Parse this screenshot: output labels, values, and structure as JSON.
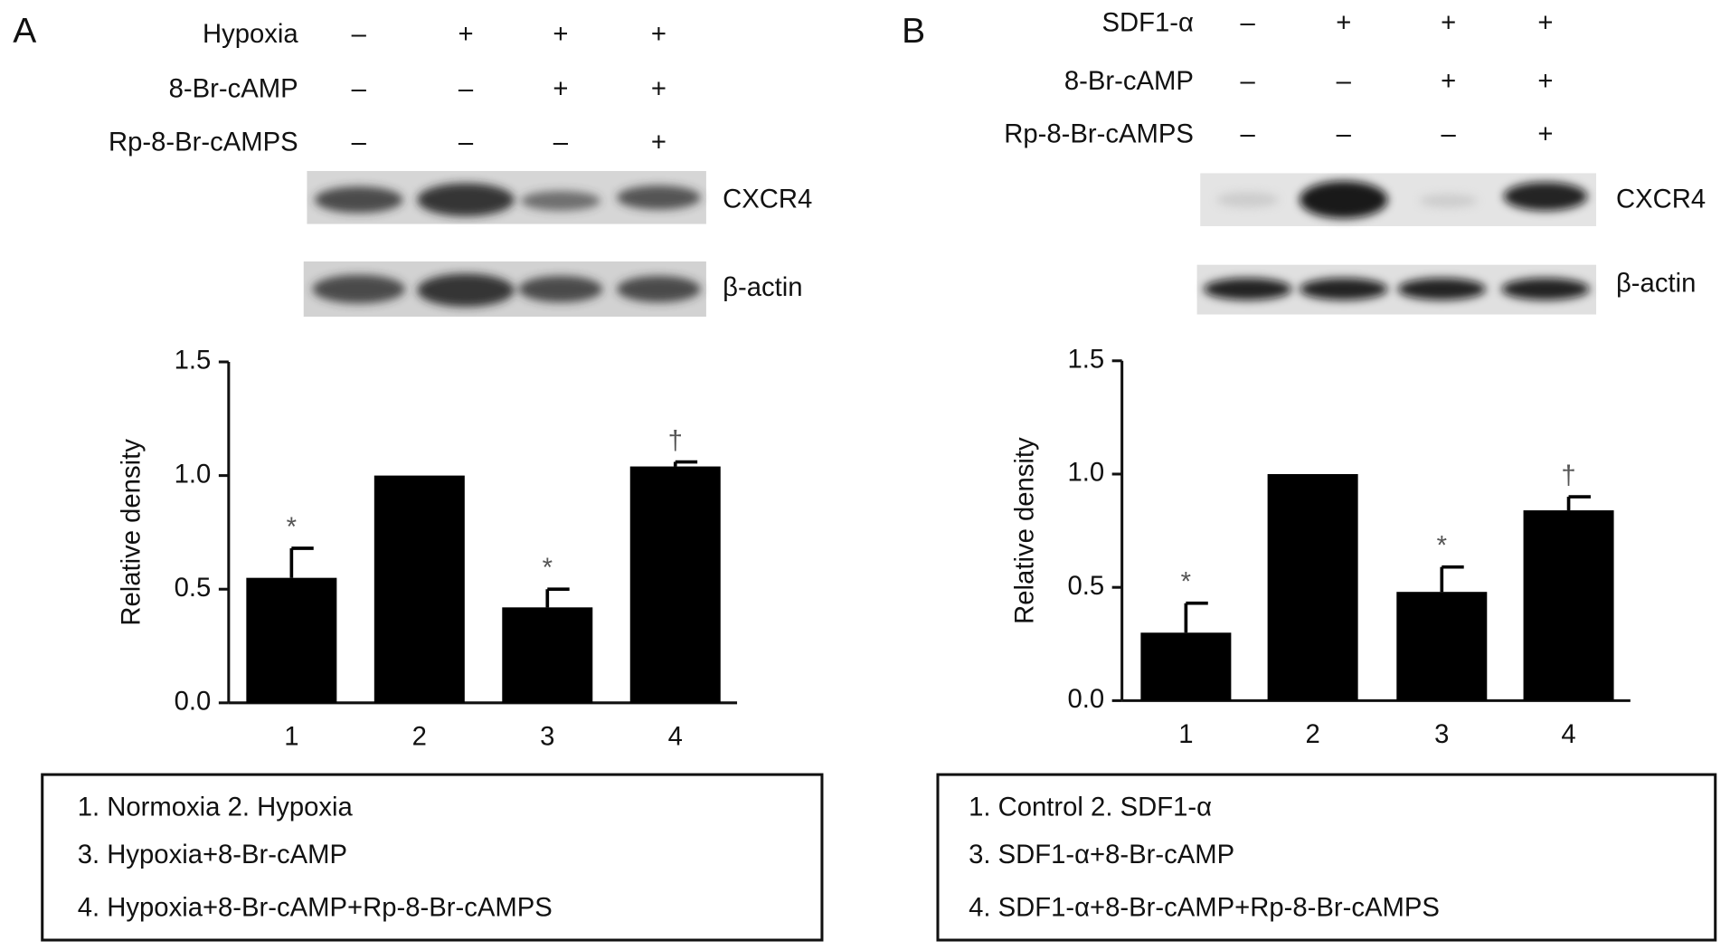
{
  "panels": [
    {
      "letter": "A",
      "treatments": [
        {
          "name": "Hypoxia",
          "signs": [
            "–",
            "+",
            "+",
            "+"
          ]
        },
        {
          "name": "8-Br-cAMP",
          "signs": [
            "–",
            "–",
            "+",
            "+"
          ]
        },
        {
          "name": "Rp-8-Br-cAMPS",
          "signs": [
            "–",
            "–",
            "–",
            "+"
          ]
        }
      ],
      "blot_labels": [
        "CXCR4",
        "β-actin"
      ],
      "legend_lines": [
        "1. Normoxia 2. Hypoxia",
        "3. Hypoxia+8-Br-cAMP",
        "4. Hypoxia+8-Br-cAMP+Rp-8-Br-cAMPS"
      ]
    },
    {
      "letter": "B",
      "treatments": [
        {
          "name": "SDF1-α",
          "signs": [
            "–",
            "+",
            "+",
            "+"
          ]
        },
        {
          "name": "8-Br-cAMP",
          "signs": [
            "–",
            "–",
            "+",
            "+"
          ]
        },
        {
          "name": "Rp-8-Br-cAMPS",
          "signs": [
            "–",
            "–",
            "–",
            "+"
          ]
        }
      ],
      "blot_labels": [
        "CXCR4",
        "β-actin"
      ],
      "legend_lines": [
        "1. Control 2. SDF1-α",
        "3. SDF1-α+8-Br-cAMP",
        "4. SDF1-α+8-Br-cAMP+Rp-8-Br-cAMPS"
      ]
    }
  ],
  "chart_data": [
    {
      "type": "bar",
      "y_label": "Relative density",
      "categories": [
        "1",
        "2",
        "3",
        "4"
      ],
      "values": [
        0.55,
        1.0,
        0.42,
        1.04
      ],
      "errors": [
        0.13,
        null,
        0.08,
        0.02
      ],
      "annotations": [
        "*",
        null,
        "*",
        "†"
      ],
      "color": "#000000",
      "ylim": [
        0,
        1.5
      ],
      "yticks": [
        {
          "value": 0,
          "label": "0.0"
        },
        {
          "value": 0.5,
          "label": "0.5"
        },
        {
          "value": 1,
          "label": "1.0"
        },
        {
          "value": 1.5,
          "label": "1.5"
        }
      ]
    },
    {
      "type": "bar",
      "y_label": "Relative density",
      "categories": [
        "1",
        "2",
        "3",
        "4"
      ],
      "values": [
        0.3,
        1.0,
        0.48,
        0.84
      ],
      "errors": [
        0.13,
        null,
        0.11,
        0.06
      ],
      "annotations": [
        "*",
        null,
        "*",
        "†"
      ],
      "color": "#000000",
      "ylim": [
        0,
        1.5
      ],
      "yticks": [
        {
          "value": 0,
          "label": "0.0"
        },
        {
          "value": 0.5,
          "label": "0.5"
        },
        {
          "value": 1,
          "label": "1.0"
        },
        {
          "value": 1.5,
          "label": "1.5"
        }
      ]
    }
  ]
}
